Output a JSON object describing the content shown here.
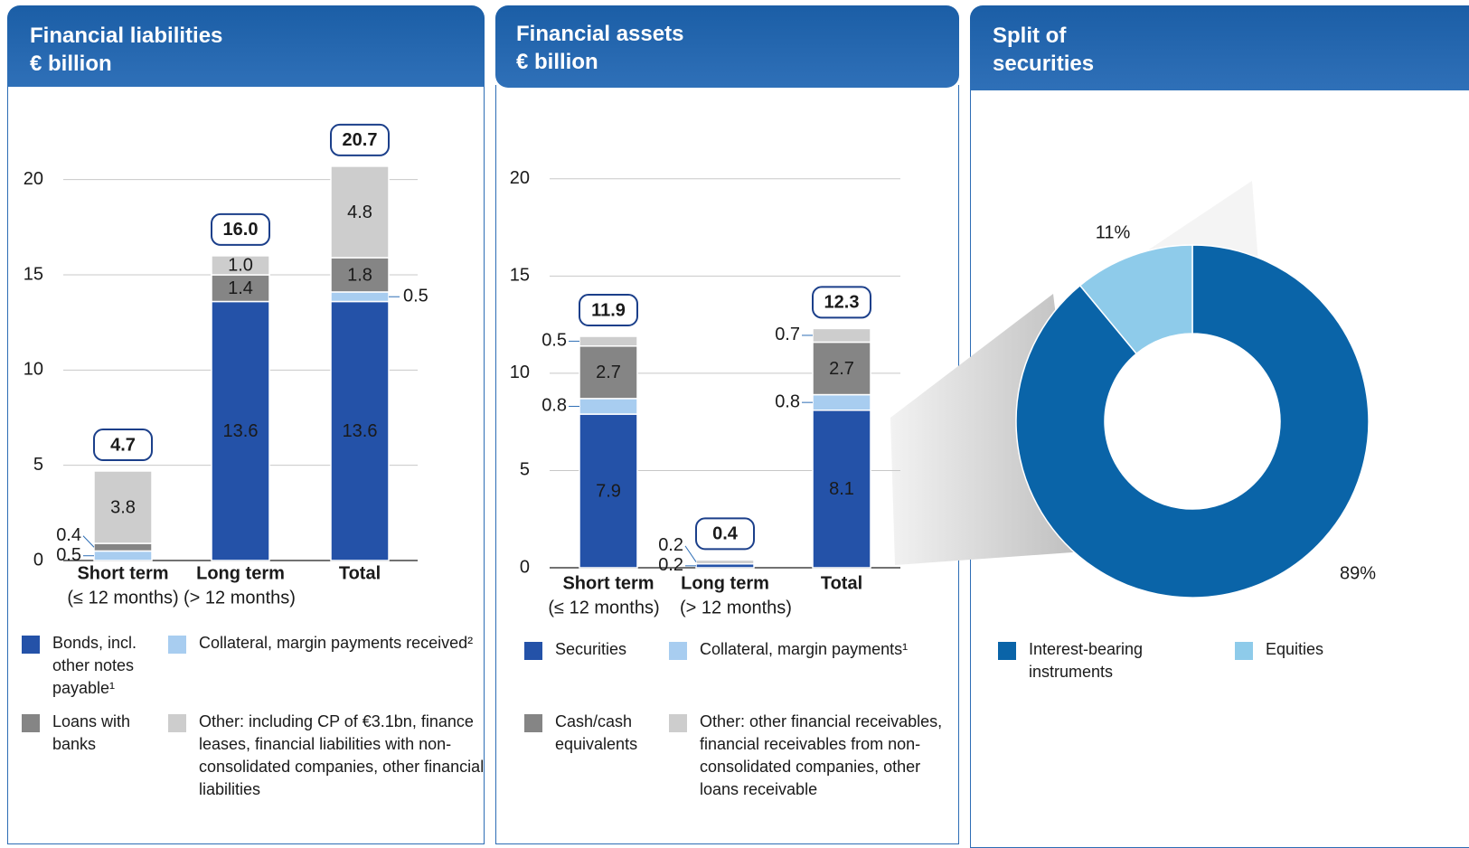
{
  "chart_data": [
    {
      "type": "bar",
      "stacked": true,
      "title": "Financial liabilities",
      "subtitle": "€ billion",
      "categories": [
        "Short term",
        "Long term",
        "Total"
      ],
      "category_sublabels": [
        "(≤ 12 months)",
        "(> 12 months)",
        null
      ],
      "series": [
        {
          "name": "Bonds, incl. other notes payable¹",
          "color": "#2452a8",
          "values": [
            null,
            13.6,
            13.6
          ],
          "value_labels": [
            null,
            "13.6",
            "13.6"
          ]
        },
        {
          "name": "Collateral, margin payments received²",
          "color": "#a8cdf0",
          "values": [
            0.5,
            null,
            0.5
          ],
          "value_labels": [
            "0.5",
            null,
            "0.5"
          ]
        },
        {
          "name": "Loans with banks",
          "color": "#858585",
          "values": [
            0.4,
            1.4,
            1.8
          ],
          "value_labels": [
            "0.4",
            "1.4",
            "1.8"
          ]
        },
        {
          "name": "Other: including CP of €3.1bn, finance leases, financial liabilities with non-consolidated companies, other financial liabilities",
          "color": "#cdcdcd",
          "values": [
            3.8,
            1,
            4.8
          ],
          "value_labels": [
            "3.8",
            "1.0",
            "4.8"
          ]
        }
      ],
      "totals": {
        "values": [
          4.7,
          16,
          20.7
        ],
        "value_labels": [
          "4.7",
          "16.0",
          "20.7"
        ]
      },
      "ylim": [
        0,
        22.5
      ],
      "yticks": [
        0,
        5,
        10,
        15,
        20
      ],
      "grid": true
    },
    {
      "type": "bar",
      "stacked": true,
      "title": "Financial assets",
      "subtitle": "€ billion",
      "categories": [
        "Short term",
        "Long term",
        "Total"
      ],
      "category_sublabels": [
        "(≤ 12 months)",
        "(> 12 months)",
        null
      ],
      "series": [
        {
          "name": "Securities",
          "color": "#2452a8",
          "values": [
            7.9,
            0.2,
            8.1
          ],
          "value_labels": [
            "7.9",
            "0.2",
            "8.1"
          ]
        },
        {
          "name": "Collateral, margin payments¹",
          "color": "#a8cdf0",
          "values": [
            0.8,
            null,
            0.8
          ],
          "value_labels": [
            "0.8",
            null,
            "0.8"
          ]
        },
        {
          "name": "Cash/cash equivalents",
          "color": "#858585",
          "values": [
            2.7,
            null,
            2.7
          ],
          "value_labels": [
            "2.7",
            null,
            "2.7"
          ]
        },
        {
          "name": "Other: other financial receivables, financial receivables from non-consolidated companies, other loans receivable",
          "color": "#cdcdcd",
          "values": [
            0.5,
            0.2,
            0.7
          ],
          "value_labels": [
            "0.5",
            "0.2",
            "0.7"
          ]
        }
      ],
      "totals": {
        "values": [
          11.9,
          0.4,
          12.3
        ],
        "value_labels": [
          "11.9",
          "0.4",
          "12.3"
        ]
      },
      "ylim": [
        0,
        22.5
      ],
      "yticks": [
        0,
        5,
        10,
        15,
        20
      ],
      "grid": true
    },
    {
      "type": "donut",
      "title": "Split of securities",
      "categories": [
        "Interest-bearing instruments",
        "Equities"
      ],
      "values": [
        89,
        11
      ],
      "value_labels": [
        "89%",
        "11%"
      ],
      "colors": [
        "#0a64a8",
        "#8ecbea"
      ]
    }
  ]
}
